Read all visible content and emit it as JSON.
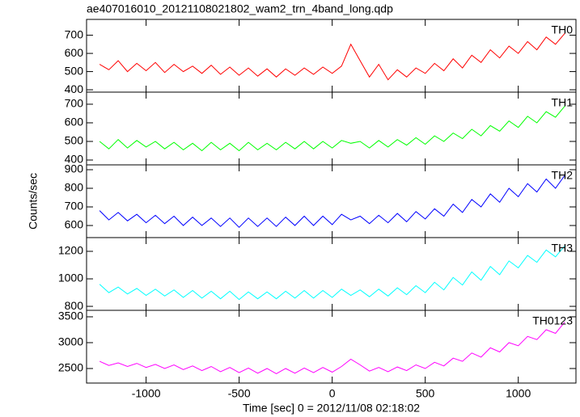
{
  "chart_data": [
    {
      "type": "line",
      "title": "ae407016010_20121108021802_wam2_trn_4band_long.qdp",
      "x": [
        -1250,
        -1200,
        -1150,
        -1100,
        -1050,
        -1000,
        -950,
        -900,
        -850,
        -800,
        -750,
        -700,
        -650,
        -600,
        -550,
        -500,
        -450,
        -400,
        -350,
        -300,
        -250,
        -200,
        -150,
        -100,
        -50,
        0,
        50,
        100,
        150,
        200,
        250,
        300,
        350,
        400,
        450,
        500,
        550,
        600,
        650,
        700,
        750,
        800,
        850,
        900,
        950,
        1000,
        1050,
        1100,
        1150,
        1200,
        1250
      ],
      "series": [
        {
          "name": "TH0",
          "color": "#ff0000",
          "values": [
            540,
            510,
            560,
            500,
            545,
            505,
            550,
            495,
            540,
            500,
            530,
            490,
            535,
            485,
            525,
            480,
            520,
            475,
            515,
            470,
            515,
            480,
            520,
            485,
            525,
            490,
            530,
            650,
            560,
            470,
            540,
            455,
            510,
            470,
            520,
            490,
            545,
            505,
            570,
            520,
            590,
            550,
            620,
            575,
            640,
            600,
            665,
            620,
            690,
            650,
            710
          ]
        }
      ],
      "xlim": [
        -1320,
        1310
      ],
      "xticks": [
        -1000,
        -500,
        0,
        500,
        1000
      ],
      "ylim": [
        387,
        787
      ],
      "yticks": [
        400,
        500,
        600,
        700
      ]
    },
    {
      "type": "line",
      "x": [
        -1250,
        -1200,
        -1150,
        -1100,
        -1050,
        -1000,
        -950,
        -900,
        -850,
        -800,
        -750,
        -700,
        -650,
        -600,
        -550,
        -500,
        -450,
        -400,
        -350,
        -300,
        -250,
        -200,
        -150,
        -100,
        -50,
        0,
        50,
        100,
        150,
        200,
        250,
        300,
        350,
        400,
        450,
        500,
        550,
        600,
        650,
        700,
        750,
        800,
        850,
        900,
        950,
        1000,
        1050,
        1100,
        1150,
        1200,
        1250
      ],
      "series": [
        {
          "name": "TH1",
          "color": "#00ff00",
          "values": [
            500,
            460,
            510,
            465,
            505,
            470,
            500,
            460,
            495,
            455,
            490,
            450,
            495,
            455,
            490,
            450,
            495,
            455,
            490,
            455,
            495,
            460,
            500,
            460,
            500,
            465,
            505,
            490,
            500,
            465,
            505,
            470,
            510,
            480,
            520,
            485,
            530,
            500,
            545,
            515,
            565,
            530,
            585,
            555,
            610,
            575,
            635,
            600,
            660,
            630,
            690
          ]
        }
      ],
      "xlim": [
        -1320,
        1310
      ],
      "xticks": [
        -1000,
        -500,
        0,
        500,
        1000
      ],
      "ylim": [
        374,
        765
      ],
      "yticks": [
        400,
        500,
        600,
        700
      ]
    },
    {
      "type": "line",
      "ylabel": "Counts/sec",
      "x": [
        -1250,
        -1200,
        -1150,
        -1100,
        -1050,
        -1000,
        -950,
        -900,
        -850,
        -800,
        -750,
        -700,
        -650,
        -600,
        -550,
        -500,
        -450,
        -400,
        -350,
        -300,
        -250,
        -200,
        -150,
        -100,
        -50,
        0,
        50,
        100,
        150,
        200,
        250,
        300,
        350,
        400,
        450,
        500,
        550,
        600,
        650,
        700,
        750,
        800,
        850,
        900,
        950,
        1000,
        1050,
        1100,
        1150,
        1200,
        1250
      ],
      "series": [
        {
          "name": "TH2",
          "color": "#0000ff",
          "values": [
            680,
            630,
            670,
            625,
            660,
            615,
            655,
            610,
            650,
            600,
            645,
            600,
            640,
            595,
            640,
            590,
            640,
            595,
            640,
            595,
            645,
            600,
            650,
            600,
            650,
            605,
            660,
            630,
            650,
            610,
            655,
            615,
            665,
            620,
            675,
            635,
            690,
            650,
            715,
            670,
            740,
            700,
            770,
            725,
            800,
            755,
            825,
            780,
            850,
            800,
            870
          ]
        }
      ],
      "xlim": [
        -1320,
        1310
      ],
      "xticks": [
        -1000,
        -500,
        0,
        500,
        1000
      ],
      "ylim": [
        535,
        926
      ],
      "yticks": [
        600,
        700,
        800,
        900
      ]
    },
    {
      "type": "line",
      "x": [
        -1250,
        -1200,
        -1150,
        -1100,
        -1050,
        -1000,
        -950,
        -900,
        -850,
        -800,
        -750,
        -700,
        -650,
        -600,
        -550,
        -500,
        -450,
        -400,
        -350,
        -300,
        -250,
        -200,
        -150,
        -100,
        -50,
        0,
        50,
        100,
        150,
        200,
        250,
        300,
        350,
        400,
        450,
        500,
        550,
        600,
        650,
        700,
        750,
        800,
        850,
        900,
        950,
        1000,
        1050,
        1100,
        1150,
        1200,
        1250
      ],
      "series": [
        {
          "name": "TH3",
          "color": "#00ffff",
          "values": [
            960,
            900,
            940,
            890,
            930,
            880,
            925,
            875,
            920,
            865,
            915,
            860,
            910,
            855,
            910,
            850,
            905,
            855,
            905,
            855,
            910,
            860,
            915,
            860,
            915,
            865,
            925,
            880,
            920,
            870,
            925,
            875,
            935,
            885,
            950,
            900,
            975,
            920,
            1010,
            955,
            1050,
            990,
            1090,
            1030,
            1130,
            1080,
            1170,
            1120,
            1210,
            1160,
            1240
          ]
        }
      ],
      "xlim": [
        -1320,
        1310
      ],
      "xticks": [
        -1000,
        -500,
        0,
        500,
        1000
      ],
      "ylim": [
        771,
        1300
      ],
      "yticks": [
        800,
        1000,
        1200
      ]
    },
    {
      "type": "line",
      "xlabel": "Time [sec] 0 = 2012/11/08 02:18:02",
      "x": [
        -1250,
        -1200,
        -1150,
        -1100,
        -1050,
        -1000,
        -950,
        -900,
        -850,
        -800,
        -750,
        -700,
        -650,
        -600,
        -550,
        -500,
        -450,
        -400,
        -350,
        -300,
        -250,
        -200,
        -150,
        -100,
        -50,
        0,
        50,
        100,
        150,
        200,
        250,
        300,
        350,
        400,
        450,
        500,
        550,
        600,
        650,
        700,
        750,
        800,
        850,
        900,
        950,
        1000,
        1050,
        1100,
        1150,
        1200,
        1250
      ],
      "series": [
        {
          "name": "TH0123",
          "color": "#ff00ff",
          "values": [
            2640,
            2560,
            2610,
            2540,
            2600,
            2520,
            2580,
            2500,
            2570,
            2480,
            2550,
            2460,
            2540,
            2440,
            2520,
            2420,
            2510,
            2410,
            2500,
            2400,
            2500,
            2410,
            2510,
            2420,
            2520,
            2430,
            2540,
            2680,
            2570,
            2450,
            2520,
            2440,
            2530,
            2460,
            2570,
            2500,
            2620,
            2550,
            2700,
            2640,
            2800,
            2720,
            2900,
            2820,
            3000,
            2940,
            3120,
            3060,
            3250,
            3180,
            3400
          ]
        }
      ],
      "xlim": [
        -1320,
        1310
      ],
      "xticks": [
        -1000,
        -500,
        0,
        500,
        1000
      ],
      "ylim": [
        2219,
        3625
      ],
      "yticks": [
        2500,
        3000,
        3500
      ]
    }
  ]
}
